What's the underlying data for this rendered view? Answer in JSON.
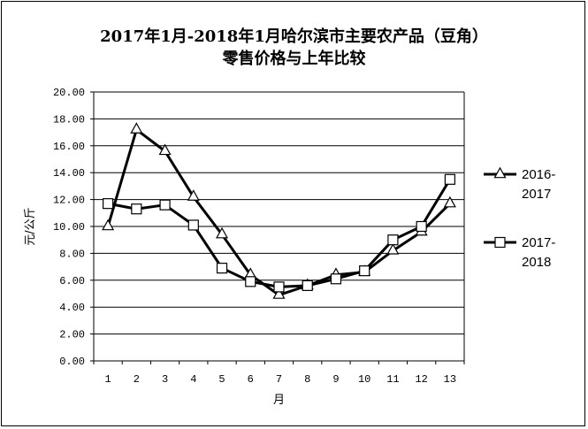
{
  "chart_data": {
    "type": "line",
    "title": "2017年1月-2018年1月哈尔滨市主要农产品（豆角）",
    "subtitle": "零售价格与上年比较",
    "xlabel": "月",
    "ylabel": "元/公斤",
    "ylim": [
      0,
      20
    ],
    "yticks": [
      "0.00",
      "2.00",
      "4.00",
      "6.00",
      "8.00",
      "10.00",
      "12.00",
      "14.00",
      "16.00",
      "18.00",
      "20.00"
    ],
    "categories": [
      "1",
      "2",
      "3",
      "4",
      "5",
      "6",
      "7",
      "8",
      "9",
      "10",
      "11",
      "12",
      "13"
    ],
    "grid": "horizontal",
    "legend_position": "right",
    "series": [
      {
        "name": "2016-2017",
        "marker": "triangle",
        "values": [
          10.0,
          17.2,
          15.6,
          12.2,
          9.4,
          6.4,
          4.9,
          5.6,
          6.4,
          6.6,
          8.2,
          9.6,
          11.7
        ]
      },
      {
        "name": "2017-2018",
        "marker": "square",
        "values": [
          11.7,
          11.3,
          11.6,
          10.1,
          6.9,
          5.9,
          5.5,
          5.6,
          6.1,
          6.7,
          9.0,
          10.0,
          13.5
        ]
      }
    ],
    "legend": [
      {
        "line1": "2016-",
        "line2": "2017"
      },
      {
        "line1": "2017-",
        "line2": "2018"
      }
    ]
  }
}
